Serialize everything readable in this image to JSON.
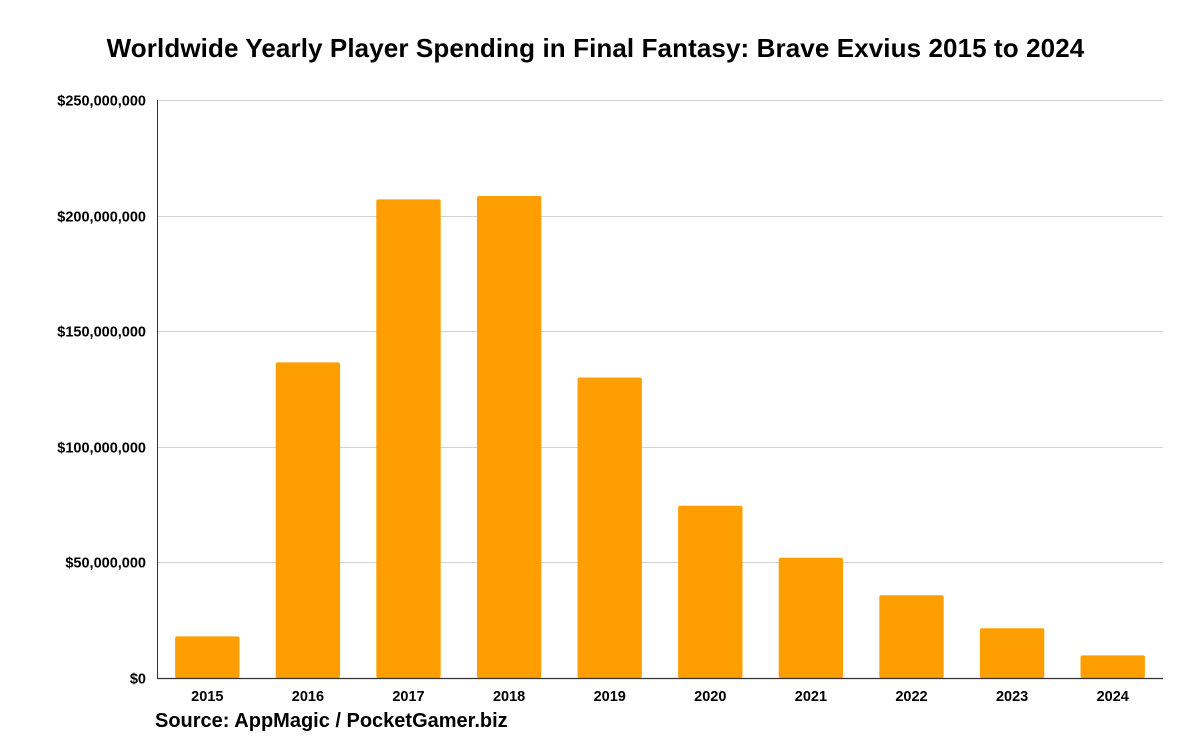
{
  "chart_data": {
    "type": "bar",
    "title": "Worldwide Yearly Player Spending in Final Fantasy: Brave Exvius 2015 to 2024",
    "xlabel": "",
    "ylabel": "",
    "categories": [
      "2015",
      "2016",
      "2017",
      "2018",
      "2019",
      "2020",
      "2021",
      "2022",
      "2023",
      "2024"
    ],
    "values": [
      18000000,
      136500000,
      207000000,
      208500000,
      130000000,
      74500000,
      52000000,
      35800000,
      21500000,
      9800000
    ],
    "ylim": [
      0,
      250000000
    ],
    "yticks": [
      0,
      50000000,
      100000000,
      150000000,
      200000000,
      250000000
    ],
    "ytick_labels": [
      "$0",
      "$50,000,000",
      "$100,000,000",
      "$150,000,000",
      "$200,000,000",
      "$250,000,000"
    ],
    "bar_color": "#FF9E00",
    "grid": true,
    "legend": "none",
    "source": "Source: AppMagic / PocketGamer.biz"
  }
}
